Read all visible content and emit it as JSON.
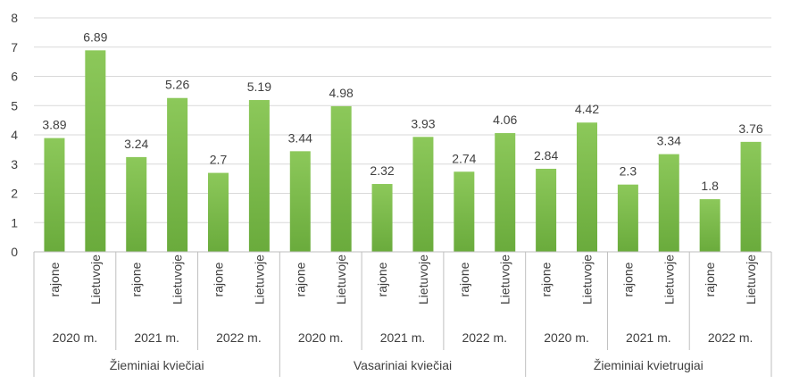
{
  "chart_data": {
    "type": "bar",
    "title": "",
    "xlabel": "",
    "ylabel": "",
    "ylim": [
      0,
      8
    ],
    "yticks": [
      0,
      1,
      2,
      3,
      4,
      5,
      6,
      7,
      8
    ],
    "grid": true,
    "legend": "none",
    "bar_color": "#6aab3c",
    "bar_color_light": "#8cc85a",
    "groups": [
      {
        "name": "Žieminiai kviečiai",
        "years": [
          {
            "label": "2020 m.",
            "bars": [
              {
                "label": "rajone",
                "value": 3.89
              },
              {
                "label": "Lietuvoje",
                "value": 6.89
              }
            ]
          },
          {
            "label": "2021 m.",
            "bars": [
              {
                "label": "rajone",
                "value": 3.24
              },
              {
                "label": "Lietuvoje",
                "value": 5.26
              }
            ]
          },
          {
            "label": "2022 m.",
            "bars": [
              {
                "label": "rajone",
                "value": 2.7
              },
              {
                "label": "Lietuvoje",
                "value": 5.19
              }
            ]
          }
        ]
      },
      {
        "name": "Vasariniai kviečiai",
        "years": [
          {
            "label": "2020 m.",
            "bars": [
              {
                "label": "rajone",
                "value": 3.44
              },
              {
                "label": "Lietuvoje",
                "value": 4.98
              }
            ]
          },
          {
            "label": "2021 m.",
            "bars": [
              {
                "label": "rajone",
                "value": 2.32
              },
              {
                "label": "Lietuvoje",
                "value": 3.93
              }
            ]
          },
          {
            "label": "2022 m.",
            "bars": [
              {
                "label": "rajone",
                "value": 2.74
              },
              {
                "label": "Lietuvoje",
                "value": 4.06
              }
            ]
          }
        ]
      },
      {
        "name": "Žieminiai kvietrugiai",
        "years": [
          {
            "label": "2020 m.",
            "bars": [
              {
                "label": "rajone",
                "value": 2.84
              },
              {
                "label": "Lietuvoje",
                "value": 4.42
              }
            ]
          },
          {
            "label": "2021 m.",
            "bars": [
              {
                "label": "rajone",
                "value": 2.3
              },
              {
                "label": "Lietuvoje",
                "value": 3.34
              }
            ]
          },
          {
            "label": "2022 m.",
            "bars": [
              {
                "label": "rajone",
                "value": 1.8
              },
              {
                "label": "Lietuvoje",
                "value": 3.76
              }
            ]
          }
        ]
      }
    ]
  }
}
